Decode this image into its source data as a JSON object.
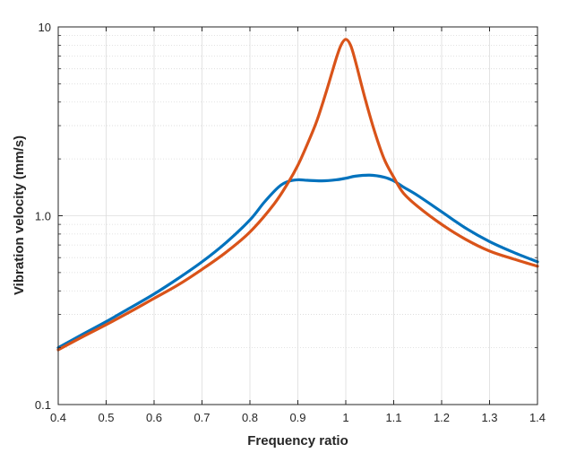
{
  "chart_data": {
    "type": "line",
    "xlabel": "Frequency ratio",
    "ylabel": "Vibration velocity (mm/s)",
    "xlim": [
      0.4,
      1.4
    ],
    "ylim": [
      0.1,
      10
    ],
    "yscale": "log",
    "grid": true,
    "minor_grid": true,
    "x_ticks": [
      0.4,
      0.5,
      0.6,
      0.7,
      0.8,
      0.9,
      1,
      1.1,
      1.2,
      1.3,
      1.4
    ],
    "x_tick_labels": [
      "0.4",
      "0.5",
      "0.6",
      "0.7",
      "0.8",
      "0.9",
      "1",
      "1.1",
      "1.2",
      "1.3",
      "1.4"
    ],
    "y_ticks": [
      0.1,
      1,
      10
    ],
    "y_tick_labels": [
      "0.1",
      "1.0",
      "10"
    ],
    "series": [
      {
        "color": "#0072BD",
        "x": [
          0.4,
          0.45,
          0.5,
          0.55,
          0.6,
          0.65,
          0.7,
          0.75,
          0.8,
          0.83,
          0.86,
          0.88,
          0.9,
          0.92,
          0.95,
          0.98,
          1.0,
          1.02,
          1.05,
          1.08,
          1.1,
          1.12,
          1.15,
          1.2,
          1.25,
          1.3,
          1.35,
          1.4
        ],
        "y": [
          0.2,
          0.235,
          0.275,
          0.325,
          0.385,
          0.465,
          0.57,
          0.72,
          0.95,
          1.18,
          1.42,
          1.52,
          1.55,
          1.54,
          1.53,
          1.55,
          1.58,
          1.62,
          1.64,
          1.6,
          1.53,
          1.42,
          1.28,
          1.05,
          0.86,
          0.73,
          0.64,
          0.57
        ]
      },
      {
        "color": "#D95319",
        "x": [
          0.4,
          0.45,
          0.5,
          0.55,
          0.6,
          0.65,
          0.7,
          0.75,
          0.8,
          0.85,
          0.88,
          0.9,
          0.92,
          0.94,
          0.96,
          0.98,
          0.99,
          1.0,
          1.01,
          1.02,
          1.04,
          1.06,
          1.08,
          1.1,
          1.12,
          1.15,
          1.2,
          1.25,
          1.3,
          1.35,
          1.4
        ],
        "y": [
          0.195,
          0.228,
          0.265,
          0.31,
          0.365,
          0.43,
          0.52,
          0.64,
          0.82,
          1.15,
          1.5,
          1.85,
          2.4,
          3.2,
          4.6,
          6.8,
          8.0,
          8.6,
          8.0,
          6.6,
          4.2,
          2.8,
          2.0,
          1.6,
          1.32,
          1.12,
          0.9,
          0.75,
          0.65,
          0.59,
          0.54
        ]
      }
    ]
  }
}
